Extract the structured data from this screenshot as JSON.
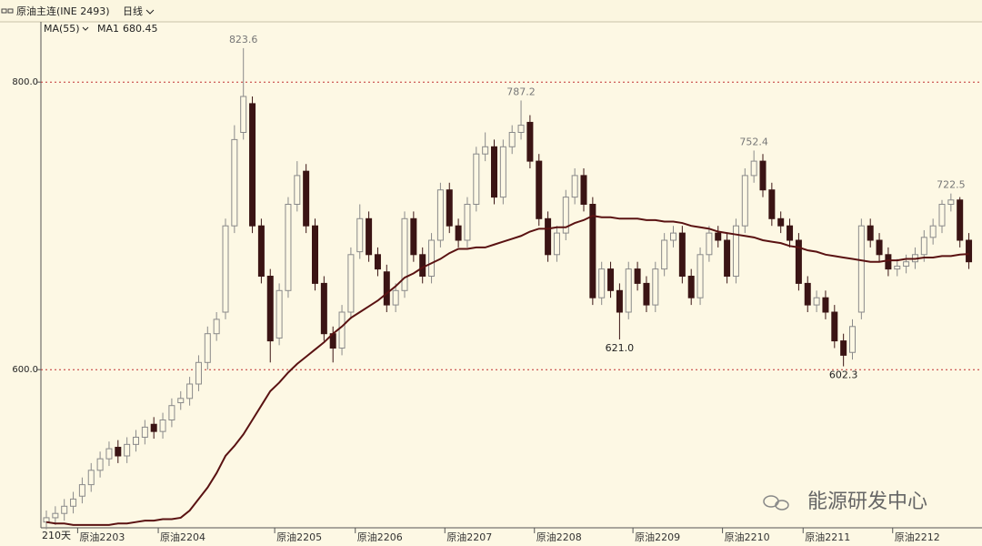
{
  "chart_data": {
    "type": "candlestick",
    "title": "原油主连(INE 2493)",
    "period_menu": "日线",
    "indicator": "MA(55)",
    "span_label": "210天",
    "watermark": "能源研发中心",
    "ylim": [
      490,
      840
    ],
    "yticks": [
      {
        "value": 800,
        "label": "800.0"
      },
      {
        "value": 600,
        "label": "600.0"
      }
    ],
    "grid": true,
    "up_color": "#8a8a8a",
    "down_color": "#3b1414",
    "categories": [
      null,
      null,
      null,
      null,
      "原油2203",
      null,
      null,
      null,
      null,
      null,
      null,
      null,
      null,
      "原油2204",
      null,
      null,
      null,
      null,
      null,
      null,
      null,
      null,
      null,
      null,
      null,
      null,
      "原油2205",
      null,
      null,
      null,
      null,
      null,
      null,
      null,
      null,
      "原油2206",
      null,
      null,
      null,
      null,
      null,
      null,
      null,
      null,
      null,
      "原油2207",
      null,
      null,
      null,
      null,
      null,
      null,
      null,
      null,
      null,
      "原油2208",
      null,
      null,
      null,
      null,
      null,
      null,
      null,
      null,
      null,
      null,
      "原油2209",
      null,
      null,
      null,
      null,
      null,
      null,
      null,
      null,
      null,
      "原油2210",
      null,
      null,
      null,
      null,
      null,
      null,
      null,
      null,
      "原油2211",
      null,
      null,
      null,
      null,
      null,
      null,
      null,
      null,
      null,
      "原油2212",
      null,
      null,
      null,
      null,
      null,
      null,
      null,
      null
    ],
    "open": [
      494,
      497,
      500,
      505,
      512,
      520,
      530,
      538,
      546,
      540,
      548,
      553,
      562,
      557,
      565,
      577,
      580,
      590,
      605,
      625,
      640,
      700,
      765,
      785,
      700,
      665,
      622,
      655,
      715,
      738,
      700,
      660,
      625,
      615,
      640,
      682,
      705,
      680,
      668,
      645,
      655,
      705,
      680,
      665,
      690,
      725,
      700,
      690,
      715,
      750,
      755,
      720,
      755,
      765,
      772,
      745,
      705,
      680,
      695,
      720,
      735,
      715,
      650,
      670,
      655,
      640,
      670,
      660,
      645,
      670,
      690,
      695,
      665,
      650,
      680,
      695,
      690,
      665,
      700,
      735,
      745,
      725,
      705,
      700,
      690,
      660,
      645,
      650,
      640,
      620,
      612,
      640,
      700,
      690,
      680,
      670,
      672,
      675,
      680,
      692,
      700,
      715,
      718,
      690
    ],
    "high": [
      502,
      505,
      510,
      515,
      525,
      535,
      543,
      550,
      551,
      553,
      558,
      565,
      567,
      570,
      580,
      585,
      595,
      610,
      630,
      640,
      705,
      770,
      823.6,
      790,
      705,
      670,
      660,
      720,
      745,
      743,
      705,
      665,
      630,
      645,
      685,
      715,
      710,
      685,
      673,
      660,
      710,
      710,
      685,
      695,
      730,
      730,
      705,
      720,
      755,
      765,
      760,
      760,
      770,
      787.2,
      777,
      750,
      710,
      700,
      725,
      740,
      740,
      720,
      675,
      675,
      660,
      675,
      675,
      665,
      675,
      695,
      700,
      700,
      670,
      685,
      700,
      700,
      695,
      705,
      740,
      752.4,
      750,
      730,
      710,
      705,
      695,
      665,
      655,
      655,
      645,
      625,
      635,
      705,
      705,
      695,
      685,
      677,
      680,
      685,
      697,
      705,
      718,
      722.5,
      720,
      695
    ],
    "low": [
      489,
      492,
      495,
      500,
      507,
      515,
      525,
      533,
      535,
      535,
      543,
      548,
      552,
      552,
      560,
      572,
      575,
      585,
      600,
      620,
      635,
      695,
      760,
      695,
      660,
      605,
      617,
      650,
      710,
      695,
      655,
      620,
      605,
      610,
      635,
      677,
      675,
      665,
      640,
      640,
      650,
      675,
      660,
      660,
      685,
      695,
      685,
      685,
      710,
      745,
      715,
      715,
      750,
      760,
      740,
      700,
      675,
      675,
      690,
      715,
      710,
      645,
      645,
      650,
      621.0,
      635,
      655,
      640,
      640,
      665,
      685,
      660,
      645,
      645,
      675,
      685,
      660,
      660,
      695,
      730,
      720,
      700,
      695,
      685,
      655,
      640,
      640,
      635,
      615,
      602.3,
      607,
      635,
      685,
      675,
      665,
      665,
      667,
      670,
      675,
      687,
      695,
      710,
      685,
      670
    ],
    "close": [
      497,
      500,
      505,
      510,
      520,
      530,
      538,
      545,
      540,
      548,
      553,
      560,
      557,
      565,
      575,
      580,
      590,
      605,
      625,
      635,
      700,
      760,
      790,
      700,
      665,
      620,
      655,
      715,
      735,
      700,
      660,
      625,
      615,
      640,
      680,
      705,
      680,
      670,
      645,
      655,
      705,
      680,
      665,
      690,
      725,
      700,
      690,
      715,
      750,
      755,
      720,
      755,
      765,
      770,
      745,
      705,
      680,
      695,
      720,
      735,
      715,
      650,
      670,
      655,
      640,
      670,
      660,
      645,
      670,
      690,
      695,
      665,
      650,
      680,
      695,
      690,
      665,
      700,
      735,
      745,
      725,
      705,
      700,
      690,
      660,
      645,
      650,
      640,
      620,
      610,
      630,
      700,
      690,
      680,
      670,
      672,
      675,
      680,
      692,
      700,
      715,
      718,
      690,
      675
    ],
    "annotations": [
      {
        "value": 823.6,
        "label": "823.6"
      },
      {
        "value": 787.2,
        "label": "787.2"
      },
      {
        "value": 752.4,
        "label": "752.4"
      },
      {
        "value": 621,
        "label": "621.0"
      },
      {
        "value": 602.3,
        "label": "602.3"
      },
      {
        "value": 722.5,
        "label": "722.5"
      }
    ],
    "ma": {
      "name": "MA1",
      "color": "#5a1212",
      "values": [
        494,
        493,
        493,
        492,
        492,
        492,
        492,
        492,
        493,
        493,
        494,
        495,
        495,
        496,
        496,
        497,
        502,
        510,
        518,
        528,
        540,
        547,
        555,
        565,
        575,
        585,
        591,
        598,
        604,
        609,
        614,
        619,
        625,
        630,
        636,
        640,
        644,
        648,
        653,
        658,
        664,
        667,
        671,
        674,
        677,
        681,
        684,
        684,
        685,
        685,
        687,
        689,
        691,
        693,
        696,
        698,
        698,
        699,
        699,
        702,
        704,
        707,
        706,
        706,
        705,
        705,
        705,
        704,
        704,
        703,
        703,
        702,
        700,
        699,
        698,
        696,
        695,
        694,
        693,
        692,
        690,
        689,
        688,
        686,
        685,
        683,
        682,
        680,
        679,
        678,
        677,
        676,
        675,
        675,
        676,
        676,
        677,
        677,
        678,
        678,
        679,
        679,
        680,
        680.45
      ]
    }
  }
}
